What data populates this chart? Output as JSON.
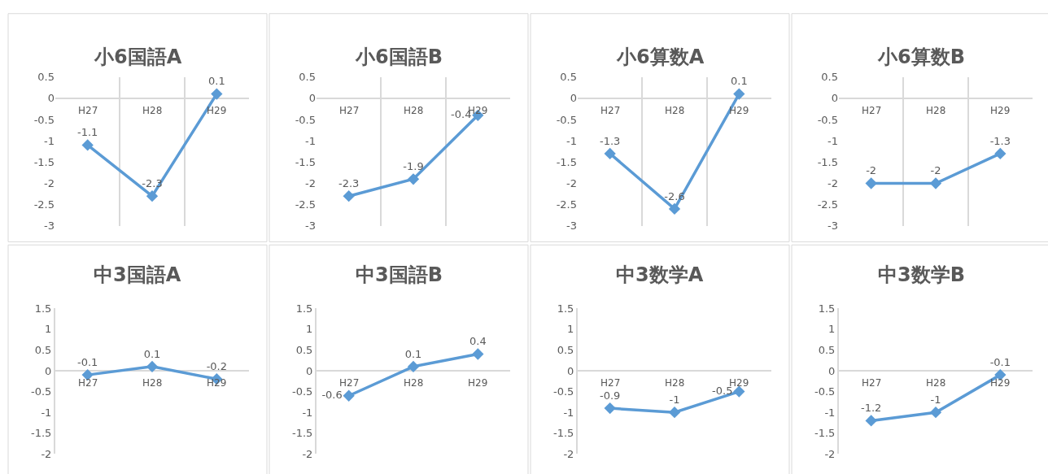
{
  "chart_data": [
    {
      "type": "line",
      "title": "小6国語A",
      "categories": [
        "H27",
        "H28",
        "H29"
      ],
      "values": [
        -1.1,
        -2.3,
        0.1
      ],
      "color": "#5b9bd5",
      "ylim": [
        -3,
        0.5
      ],
      "yticks": [
        -3,
        -2.5,
        -2,
        -1.5,
        -1,
        -0.5,
        0,
        0.5
      ],
      "grid": "x",
      "data_labels": true,
      "marker": "diamond"
    },
    {
      "type": "line",
      "title": "小6国語B",
      "categories": [
        "H27",
        "H28",
        "H29"
      ],
      "values": [
        -2.3,
        -1.9,
        -0.4
      ],
      "color": "#5b9bd5",
      "ylim": [
        -3,
        0.5
      ],
      "yticks": [
        -3,
        -2.5,
        -2,
        -1.5,
        -1,
        -0.5,
        0,
        0.5
      ],
      "grid": "x",
      "data_labels": true,
      "marker": "diamond"
    },
    {
      "type": "line",
      "title": "小6算数A",
      "categories": [
        "H27",
        "H28",
        "H29"
      ],
      "values": [
        -1.3,
        -2.6,
        0.1
      ],
      "color": "#5b9bd5",
      "ylim": [
        -3,
        0.5
      ],
      "yticks": [
        -3,
        -2.5,
        -2,
        -1.5,
        -1,
        -0.5,
        0,
        0.5
      ],
      "grid": "x",
      "data_labels": true,
      "marker": "diamond"
    },
    {
      "type": "line",
      "title": "小6算数B",
      "categories": [
        "H27",
        "H28",
        "H29"
      ],
      "values": [
        -2,
        -2,
        -1.3
      ],
      "color": "#5b9bd5",
      "ylim": [
        -3,
        0.5
      ],
      "yticks": [
        -3,
        -2.5,
        -2,
        -1.5,
        -1,
        -0.5,
        0,
        0.5
      ],
      "grid": "x",
      "data_labels": true,
      "marker": "diamond"
    },
    {
      "type": "line",
      "title": "中3国語A",
      "categories": [
        "H27",
        "H28",
        "H29"
      ],
      "values": [
        -0.1,
        0.1,
        -0.2
      ],
      "color": "#5b9bd5",
      "ylim": [
        -2,
        1.5
      ],
      "yticks": [
        -2,
        -1.5,
        -1,
        -0.5,
        0,
        0.5,
        1,
        1.5
      ],
      "grid": false,
      "data_labels": true,
      "marker": "diamond"
    },
    {
      "type": "line",
      "title": "中3国語B",
      "categories": [
        "H27",
        "H28",
        "H29"
      ],
      "values": [
        -0.6,
        0.1,
        0.4
      ],
      "color": "#5b9bd5",
      "ylim": [
        -2,
        1.5
      ],
      "yticks": [
        -2,
        -1.5,
        -1,
        -0.5,
        0,
        0.5,
        1,
        1.5
      ],
      "grid": false,
      "data_labels": true,
      "marker": "diamond"
    },
    {
      "type": "line",
      "title": "中3数学A",
      "categories": [
        "H27",
        "H28",
        "H29"
      ],
      "values": [
        -0.9,
        -1,
        -0.5
      ],
      "color": "#5b9bd5",
      "ylim": [
        -2,
        1.5
      ],
      "yticks": [
        -2,
        -1.5,
        -1,
        -0.5,
        0,
        0.5,
        1,
        1.5
      ],
      "grid": false,
      "data_labels": true,
      "marker": "diamond"
    },
    {
      "type": "line",
      "title": "中3数学B",
      "categories": [
        "H27",
        "H28",
        "H29"
      ],
      "values": [
        -1.2,
        -1,
        -0.1
      ],
      "color": "#5b9bd5",
      "ylim": [
        -2,
        1.5
      ],
      "yticks": [
        -2,
        -1.5,
        -1,
        -0.5,
        0,
        0.5,
        1,
        1.5
      ],
      "grid": false,
      "data_labels": true,
      "marker": "diamond"
    }
  ]
}
